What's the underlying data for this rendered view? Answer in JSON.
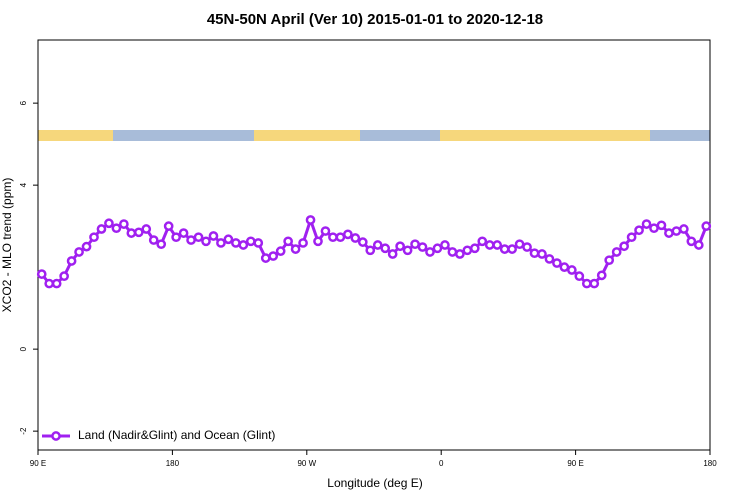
{
  "chart_data": {
    "type": "line",
    "title": "45N-50N April (Ver 10)   2015-01-01 to 2020-12-18",
    "x_label": "Longitude (deg E)",
    "y_label": "XCO2 - MLO trend (ppm)",
    "xlim": [
      90,
      540
    ],
    "xticks": [
      {
        "value": 90,
        "label": "90 E"
      },
      180,
      {
        "value": 270,
        "label": "90 W"
      },
      {
        "value": 360,
        "label": "0"
      },
      {
        "value": 450,
        "label": "90 E"
      },
      {
        "value": 540,
        "label": "180"
      }
    ],
    "ylim": [
      -2.46,
      7.54
    ],
    "yticks": [
      -2,
      0,
      4,
      6
    ],
    "legend": "bottom-left",
    "x": [
      92.5,
      97.5,
      102.5,
      107.5,
      112.5,
      117.5,
      122.5,
      127.5,
      132.5,
      137.5,
      142.5,
      147.5,
      152.5,
      157.5,
      162.5,
      167.5,
      172.5,
      177.5,
      182.5,
      187.5,
      192.5,
      197.5,
      202.5,
      207.5,
      212.5,
      217.5,
      222.5,
      227.5,
      232.5,
      237.5,
      242.5,
      247.5,
      252.5,
      257.5,
      262.5,
      267.5,
      272.5,
      277.5,
      282.5,
      287.5,
      292.5,
      297.5,
      302.5,
      307.5,
      312.5,
      317.5,
      322.5,
      327.5,
      332.5,
      337.5,
      342.5,
      347.5,
      352.5,
      357.5,
      362.5,
      367.5,
      372.5,
      377.5,
      382.5,
      387.5,
      392.5,
      397.5,
      402.5,
      407.5,
      412.5,
      417.5,
      422.5,
      427.5,
      432.5,
      437.5,
      442.5,
      447.5,
      452.5,
      457.5,
      462.5,
      467.5,
      472.5,
      477.5,
      482.5,
      487.5,
      492.5,
      497.5,
      502.5,
      507.5,
      512.5,
      517.5,
      522.5,
      527.5,
      532.5,
      537.5
    ],
    "series": [
      {
        "name": "Land (Nadir&Glint) and Ocean (Glint)",
        "color": "#a020f0",
        "values": [
          1.83,
          1.6,
          1.6,
          1.78,
          2.15,
          2.37,
          2.5,
          2.73,
          2.93,
          3.07,
          2.95,
          3.05,
          2.83,
          2.85,
          2.93,
          2.66,
          2.56,
          3.0,
          2.73,
          2.83,
          2.66,
          2.73,
          2.63,
          2.76,
          2.59,
          2.68,
          2.59,
          2.54,
          2.63,
          2.59,
          2.22,
          2.27,
          2.39,
          2.63,
          2.44,
          2.59,
          3.15,
          2.63,
          2.88,
          2.73,
          2.73,
          2.8,
          2.71,
          2.61,
          2.41,
          2.54,
          2.46,
          2.32,
          2.51,
          2.41,
          2.56,
          2.49,
          2.37,
          2.46,
          2.54,
          2.37,
          2.32,
          2.41,
          2.46,
          2.63,
          2.54,
          2.54,
          2.44,
          2.44,
          2.56,
          2.49,
          2.34,
          2.32,
          2.2,
          2.1,
          2.0,
          1.93,
          1.78,
          1.6,
          1.6,
          1.8,
          2.17,
          2.37,
          2.51,
          2.73,
          2.9,
          3.05,
          2.95,
          3.02,
          2.83,
          2.88,
          2.93,
          2.63,
          2.54,
          3.0
        ]
      }
    ]
  }
}
